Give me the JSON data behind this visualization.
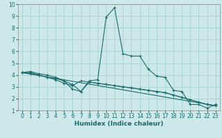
{
  "xlabel": "Humidex (Indice chaleur)",
  "xlim": [
    -0.5,
    23.5
  ],
  "ylim": [
    1,
    10
  ],
  "xticks": [
    0,
    1,
    2,
    3,
    4,
    5,
    6,
    7,
    8,
    9,
    10,
    11,
    12,
    13,
    14,
    15,
    16,
    17,
    18,
    19,
    20,
    21,
    22,
    23
  ],
  "yticks": [
    1,
    2,
    3,
    4,
    5,
    6,
    7,
    8,
    9,
    10
  ],
  "bg_color": "#cce8e8",
  "line_color": "#1a6b6b",
  "series": [
    {
      "x": [
        0,
        1,
        2,
        3,
        4,
        5,
        6,
        7,
        8,
        9,
        10,
        11,
        12,
        13,
        14,
        15,
        16,
        17,
        18,
        19,
        20,
        21,
        22,
        23
      ],
      "y": [
        4.2,
        4.3,
        4.1,
        4.0,
        3.8,
        3.5,
        3.2,
        2.6,
        3.5,
        3.6,
        8.9,
        9.7,
        5.8,
        5.6,
        5.6,
        4.5,
        3.9,
        3.8,
        2.7,
        2.6,
        1.5,
        1.5,
        1.2,
        1.5
      ],
      "marker": true
    },
    {
      "x": [
        0,
        1,
        2,
        3,
        4,
        5,
        6,
        7,
        8,
        9,
        10,
        11,
        12,
        13,
        14,
        15,
        16,
        17,
        18,
        19,
        20,
        21,
        22,
        23
      ],
      "y": [
        4.2,
        4.2,
        4.0,
        3.8,
        3.6,
        3.3,
        3.1,
        3.5,
        3.4,
        3.3,
        3.2,
        3.1,
        3.0,
        2.9,
        2.8,
        2.7,
        2.6,
        2.5,
        2.3,
        2.1,
        1.9,
        1.7,
        1.5,
        1.4
      ],
      "marker": true
    },
    {
      "x": [
        0,
        1,
        2,
        3,
        4,
        5,
        6,
        7,
        8,
        9,
        10,
        11,
        12,
        13,
        14,
        15,
        16,
        17,
        18,
        19,
        20,
        21,
        22,
        23
      ],
      "y": [
        4.2,
        4.1,
        4.0,
        3.8,
        3.7,
        3.5,
        2.8,
        2.6,
        3.4,
        3.3,
        3.2,
        3.1,
        3.0,
        2.9,
        2.8,
        2.7,
        2.6,
        2.5,
        2.3,
        2.1,
        1.9,
        1.7,
        1.5,
        1.4
      ],
      "marker": true
    },
    {
      "x": [
        0,
        23
      ],
      "y": [
        4.2,
        1.4
      ],
      "marker": false
    }
  ]
}
